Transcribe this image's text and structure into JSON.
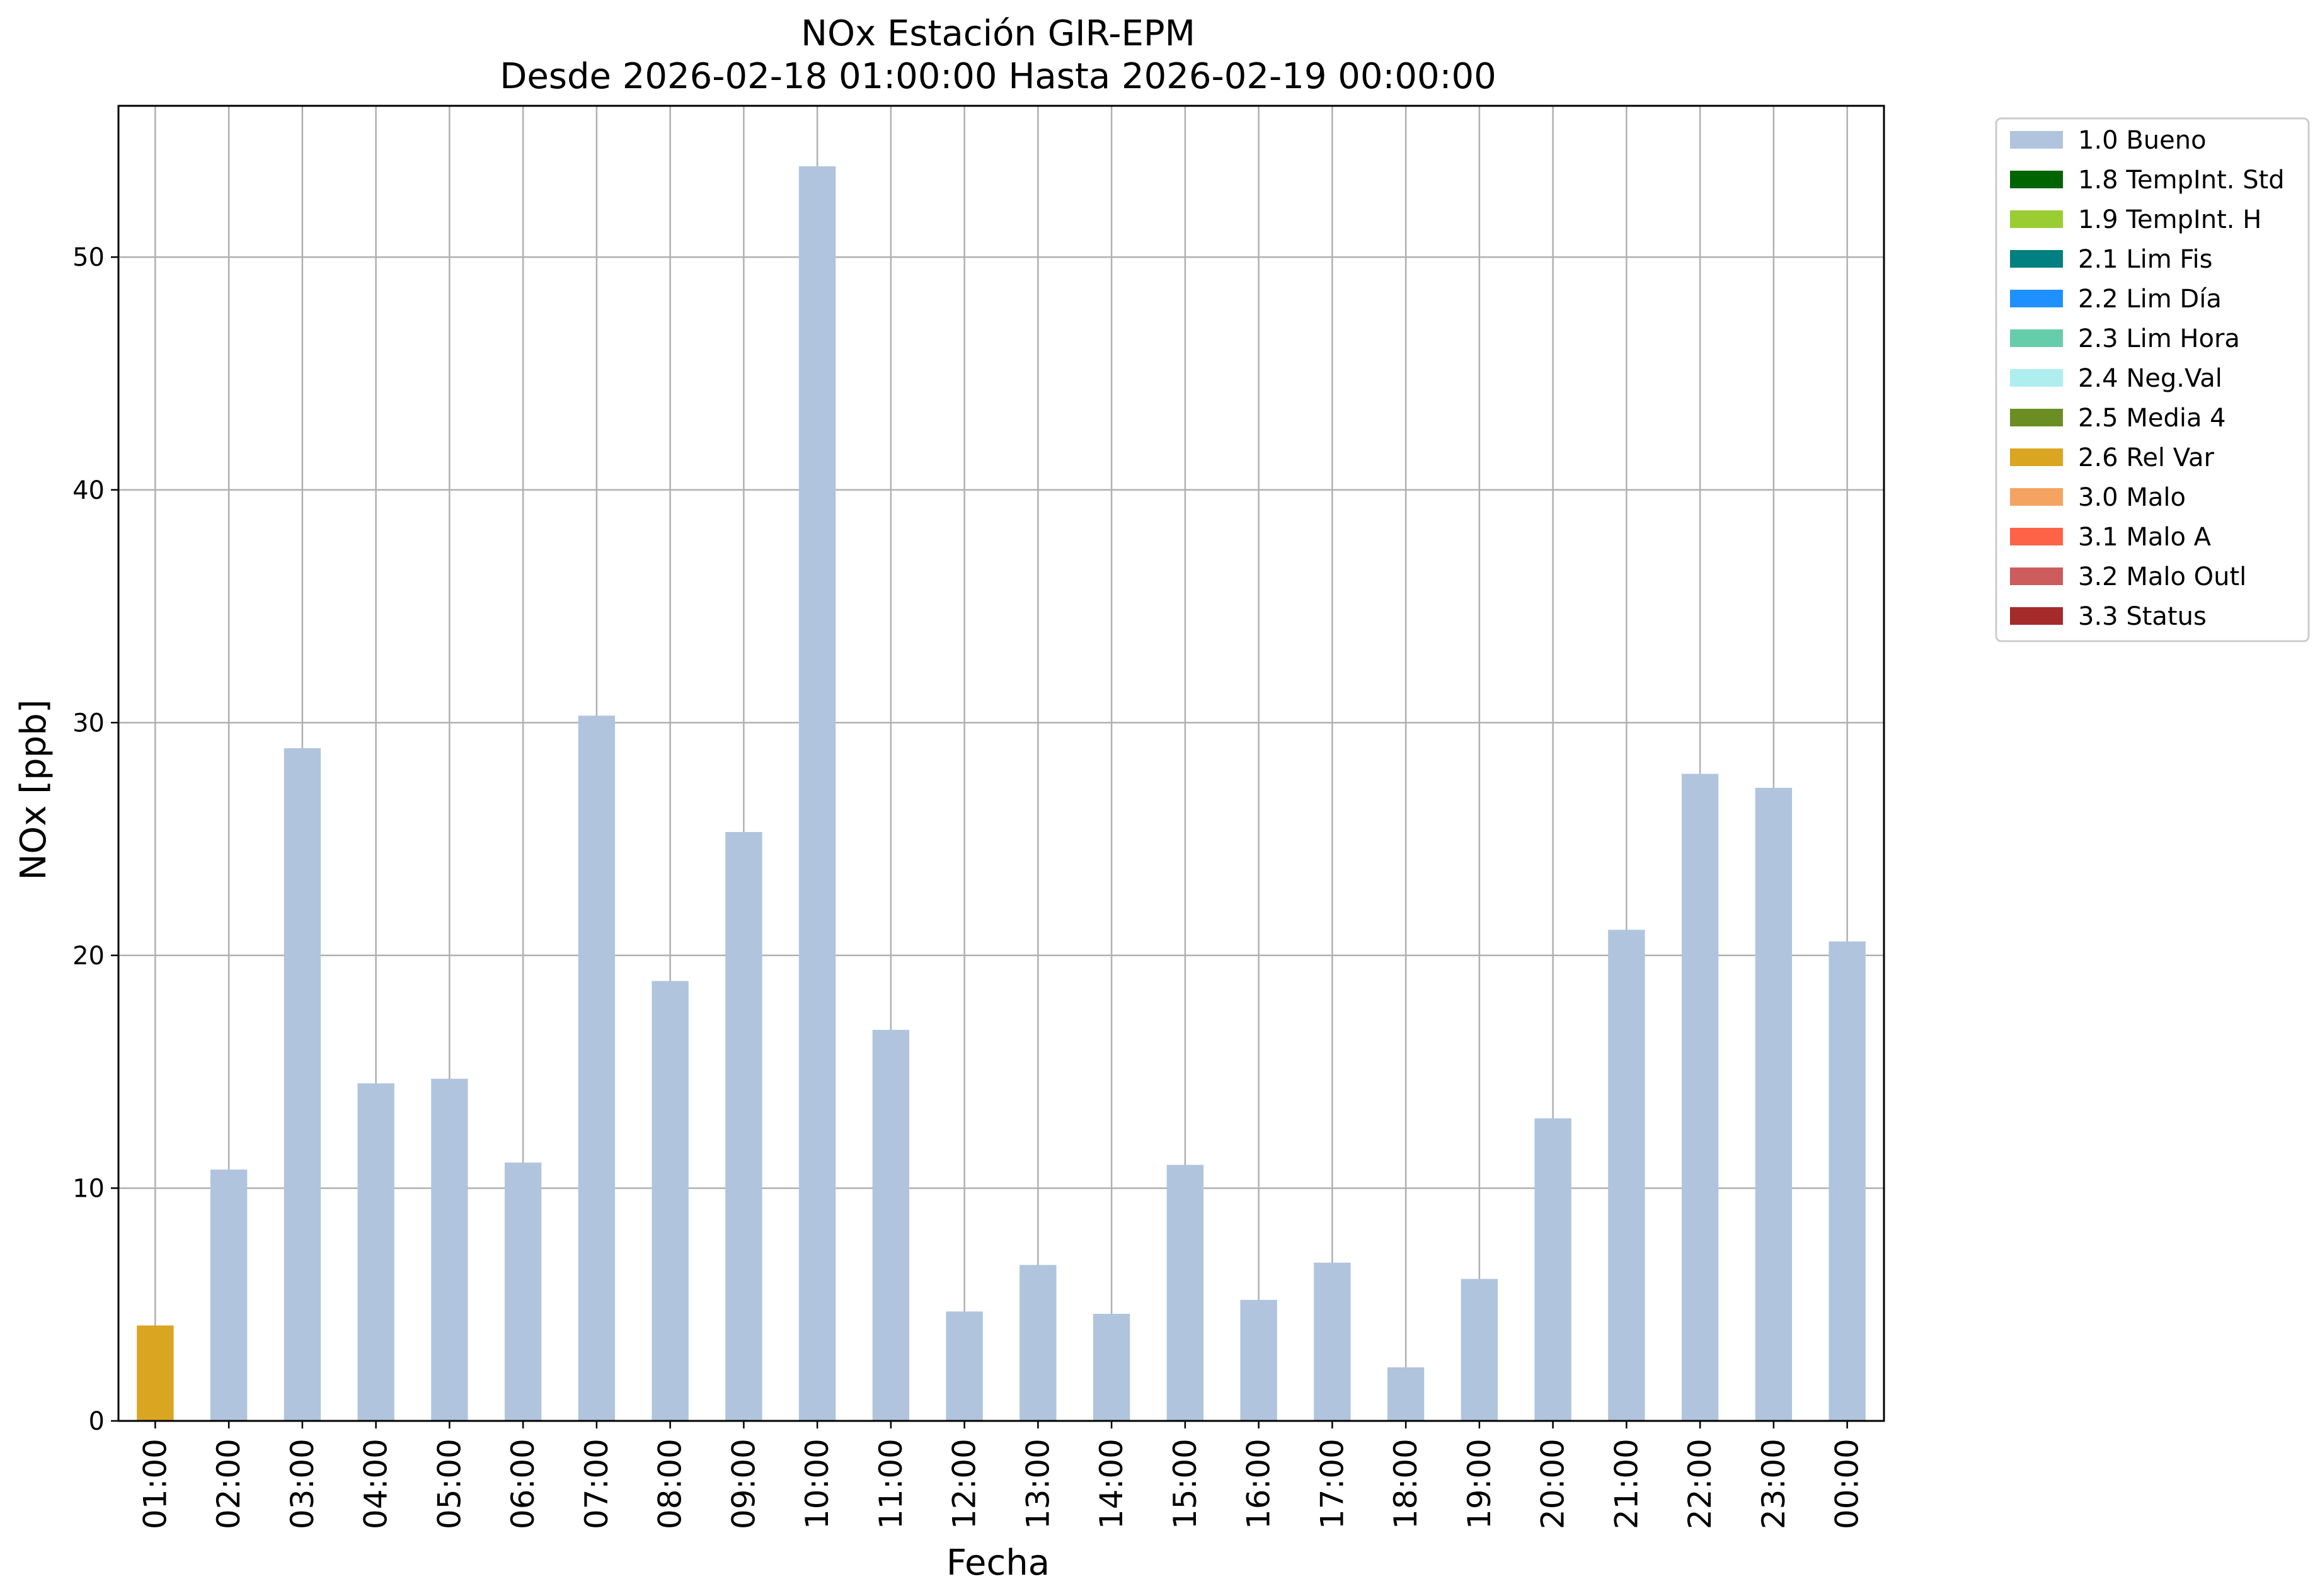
{
  "chart_data": {
    "type": "bar",
    "title": "NOx Estación GIR-EPM",
    "subtitle": "Desde 2026-02-18 01:00:00 Hasta 2026-02-19 00:00:00",
    "xlabel": "Fecha",
    "ylabel": "NOx [ppb]",
    "ylim": [
      0,
      56.5
    ],
    "yticks": [
      0,
      10,
      20,
      30,
      40,
      50
    ],
    "grid": true,
    "legend_position": "outside-top-right",
    "categories": [
      "01:00",
      "02:00",
      "03:00",
      "04:00",
      "05:00",
      "06:00",
      "07:00",
      "08:00",
      "09:00",
      "10:00",
      "11:00",
      "12:00",
      "13:00",
      "14:00",
      "15:00",
      "16:00",
      "17:00",
      "18:00",
      "19:00",
      "20:00",
      "21:00",
      "22:00",
      "23:00",
      "00:00"
    ],
    "values": [
      4.1,
      10.8,
      28.9,
      14.5,
      14.7,
      11.1,
      30.3,
      18.9,
      25.3,
      53.9,
      16.8,
      4.7,
      6.7,
      4.6,
      11.0,
      5.2,
      6.8,
      2.3,
      6.1,
      13.0,
      21.1,
      27.8,
      27.2,
      20.6
    ],
    "bar_flags": [
      "2.6 Rel Var",
      "1.0 Bueno",
      "1.0 Bueno",
      "1.0 Bueno",
      "1.0 Bueno",
      "1.0 Bueno",
      "1.0 Bueno",
      "1.0 Bueno",
      "1.0 Bueno",
      "1.0 Bueno",
      "1.0 Bueno",
      "1.0 Bueno",
      "1.0 Bueno",
      "1.0 Bueno",
      "1.0 Bueno",
      "1.0 Bueno",
      "1.0 Bueno",
      "1.0 Bueno",
      "1.0 Bueno",
      "1.0 Bueno",
      "1.0 Bueno",
      "1.0 Bueno",
      "1.0 Bueno",
      "1.0 Bueno"
    ],
    "legend": [
      {
        "label": "1.0 Bueno",
        "color": "#b0c4de"
      },
      {
        "label": "1.8 TempInt. Std",
        "color": "#006400"
      },
      {
        "label": "1.9 TempInt. H",
        "color": "#9acd32"
      },
      {
        "label": "2.1 Lim Fis",
        "color": "#008080"
      },
      {
        "label": "2.2 Lim Día",
        "color": "#1e90ff"
      },
      {
        "label": "2.3 Lim Hora",
        "color": "#66cdaa"
      },
      {
        "label": "2.4 Neg.Val",
        "color": "#afeeee"
      },
      {
        "label": "2.5 Media 4",
        "color": "#6b8e23"
      },
      {
        "label": "2.6 Rel Var",
        "color": "#daa520"
      },
      {
        "label": "3.0 Malo",
        "color": "#f4a460"
      },
      {
        "label": "3.1 Malo A",
        "color": "#ff6347"
      },
      {
        "label": "3.2 Malo Outl",
        "color": "#cd5c5c"
      },
      {
        "label": "3.3 Status",
        "color": "#a52a2a"
      }
    ]
  }
}
